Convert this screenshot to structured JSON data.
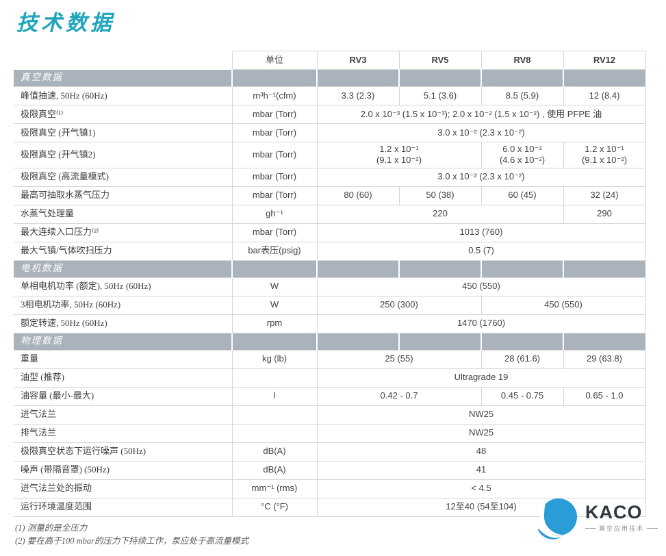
{
  "page": {
    "title": "技术数据"
  },
  "table": {
    "unit_header": "单位",
    "model_headers": [
      "RV3",
      "RV5",
      "RV8",
      "RV12"
    ],
    "sections": [
      {
        "title": "真空数据",
        "rows": [
          {
            "label": "峰值抽速, 50Hz (60Hz)",
            "unit": "m³h⁻¹(cfm)",
            "cells": [
              {
                "text": "3.3 (2.3)",
                "span": 1
              },
              {
                "text": "5.1 (3.6)",
                "span": 1
              },
              {
                "text": "8.5 (5.9)",
                "span": 1
              },
              {
                "text": "12 (8.4)",
                "span": 1
              }
            ]
          },
          {
            "label": "极限真空⁽¹⁾",
            "unit": "mbar (Torr)",
            "cells": [
              {
                "text": "2.0 x 10⁻³ (1.5 x 10⁻³); 2.0 x 10⁻² (1.5 x 10⁻²) , 使用 PFPE 油",
                "span": 4
              }
            ]
          },
          {
            "label": "极限真空 (开气镇1)",
            "unit": "mbar (Torr)",
            "cells": [
              {
                "text": "3.0 x 10⁻² (2.3 x 10⁻²)",
                "span": 4
              }
            ]
          },
          {
            "label": "极限真空 (开气镇2)",
            "unit": "mbar (Torr)",
            "cells": [
              {
                "text": "1.2 x 10⁻¹\n(9.1 x 10⁻²)",
                "span": 2
              },
              {
                "text": "6.0 x 10⁻²\n(4.6 x 10⁻²)",
                "span": 1
              },
              {
                "text": "1.2 x 10⁻¹\n(9.1 x 10⁻²)",
                "span": 1
              }
            ]
          },
          {
            "label": "极限真空 (高流量模式)",
            "unit": "mbar (Torr)",
            "cells": [
              {
                "text": "3.0 x 10⁻² (2.3 x 10⁻²)",
                "span": 4
              }
            ]
          },
          {
            "label": "最高可抽取水蒸气压力",
            "unit": "mbar (Torr)",
            "cells": [
              {
                "text": "80 (60)",
                "span": 1
              },
              {
                "text": "50 (38)",
                "span": 1
              },
              {
                "text": "60 (45)",
                "span": 1
              },
              {
                "text": "32 (24)",
                "span": 1
              }
            ]
          },
          {
            "label": "水蒸气处理量",
            "unit": "gh⁻¹",
            "cells": [
              {
                "text": "220",
                "span": 3
              },
              {
                "text": "290",
                "span": 1
              }
            ]
          },
          {
            "label": "最大连续入口压力⁽²⁾",
            "unit": "mbar (Torr)",
            "cells": [
              {
                "text": "1013 (760)",
                "span": 4
              }
            ]
          },
          {
            "label": "最大气镇/气体吹扫压力",
            "unit": "bar表压(psig)",
            "cells": [
              {
                "text": "0.5 (7)",
                "span": 4
              }
            ]
          }
        ]
      },
      {
        "title": "电机数据",
        "rows": [
          {
            "label": "单相电机功率 (额定), 50Hz (60Hz)",
            "unit": "W",
            "cells": [
              {
                "text": "450 (550)",
                "span": 4
              }
            ]
          },
          {
            "label": "3相电机功率, 50Hz (60Hz)",
            "unit": "W",
            "cells": [
              {
                "text": "250 (300)",
                "span": 2
              },
              {
                "text": "450 (550)",
                "span": 2
              }
            ]
          },
          {
            "label": "额定转速, 50Hz (60Hz)",
            "unit": "rpm",
            "cells": [
              {
                "text": "1470 (1760)",
                "span": 4
              }
            ]
          }
        ]
      },
      {
        "title": "物理数据",
        "rows": [
          {
            "label": "重量",
            "unit": "kg (lb)",
            "cells": [
              {
                "text": "25 (55)",
                "span": 2
              },
              {
                "text": "28 (61.6)",
                "span": 1
              },
              {
                "text": "29 (63.8)",
                "span": 1
              }
            ]
          },
          {
            "label": "油型 (推荐)",
            "unit": "",
            "cells": [
              {
                "text": "Ultragrade 19",
                "span": 4
              }
            ]
          },
          {
            "label": "油容量 (最小-最大)",
            "unit": "l",
            "cells": [
              {
                "text": "0.42 - 0.7",
                "span": 2
              },
              {
                "text": "0.45 - 0.75",
                "span": 1
              },
              {
                "text": "0.65 - 1.0",
                "span": 1
              }
            ]
          },
          {
            "label": "进气法兰",
            "unit": "",
            "cells": [
              {
                "text": "NW25",
                "span": 4
              }
            ]
          },
          {
            "label": "排气法兰",
            "unit": "",
            "cells": [
              {
                "text": "NW25",
                "span": 4
              }
            ]
          },
          {
            "label": "极限真空状态下运行噪声 (50Hz)",
            "unit": "dB(A)",
            "cells": [
              {
                "text": "48",
                "span": 4
              }
            ]
          },
          {
            "label": "噪声 (带隔音罩) (50Hz)",
            "unit": "dB(A)",
            "cells": [
              {
                "text": "41",
                "span": 4
              }
            ]
          },
          {
            "label": "进气法兰处的振动",
            "unit": "mm⁻¹ (rms)",
            "cells": [
              {
                "text": "< 4.5",
                "span": 4
              }
            ]
          },
          {
            "label": "运行环境温度范围",
            "unit": "°C (°F)",
            "cells": [
              {
                "text": "12至40 (54至104)",
                "span": 4
              }
            ]
          }
        ]
      }
    ]
  },
  "footnotes": [
    "(1) 测量的是全压力",
    "(2) 要在高于100 mbar的压力下持续工作，泵应处于高流量模式"
  ],
  "logo": {
    "wordmark": "KACO",
    "tagline": "真空应用技术"
  },
  "colors": {
    "title": "#1fa5bc",
    "section_bg": "#aab3bb",
    "border": "#d6d6d6",
    "text": "#404040",
    "footnote": "#575757",
    "logo_blue": "#2b9dd6",
    "logo_text": "#2f363d"
  }
}
